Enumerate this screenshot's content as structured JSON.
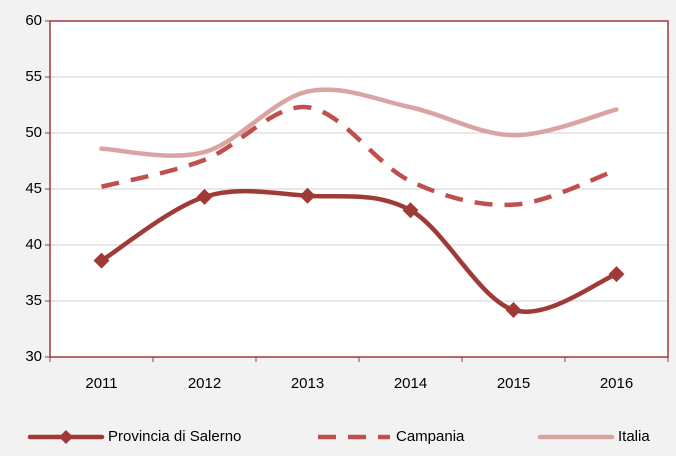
{
  "chart_data": {
    "type": "line",
    "categories": [
      "2011",
      "2012",
      "2013",
      "2014",
      "2015",
      "2016"
    ],
    "series": [
      {
        "name": "Provincia di Salerno",
        "color": "#9e3b36",
        "style": "solid-marker",
        "values": [
          38.6,
          44.3,
          44.4,
          43.1,
          34.2,
          37.4
        ]
      },
      {
        "name": "Campania",
        "color": "#c0504d",
        "style": "dashed",
        "values": [
          45.2,
          47.6,
          52.3,
          45.7,
          43.6,
          46.7
        ]
      },
      {
        "name": "Italia",
        "color": "#d9a5a3",
        "style": "solid",
        "values": [
          48.6,
          48.3,
          53.7,
          52.3,
          49.8,
          52.1
        ]
      }
    ],
    "ylim": [
      30,
      60
    ],
    "yticks": [
      30,
      35,
      40,
      45,
      50,
      55,
      60
    ],
    "grid": true,
    "legend": "bottom",
    "smooth": true
  }
}
